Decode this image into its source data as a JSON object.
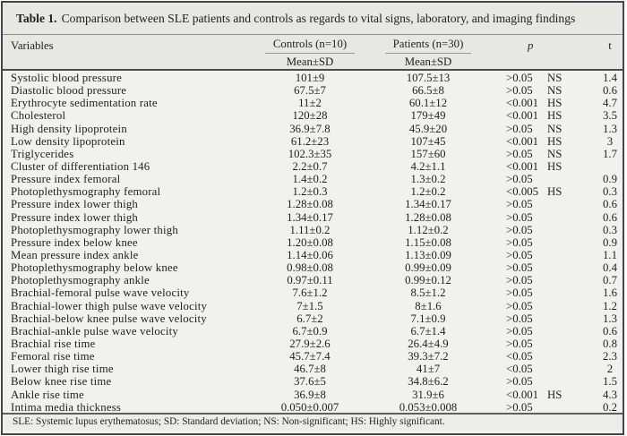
{
  "title": {
    "label": "Table 1.",
    "text": "Comparison between SLE patients and controls as regards to vital signs, laboratory, and imaging findings"
  },
  "header": {
    "variables": "Variables",
    "controls": {
      "label": "Controls (n=10)",
      "sub": "Mean±SD"
    },
    "patients": {
      "label": "Patients (n=30)",
      "sub": "Mean±SD"
    },
    "p": "p",
    "t": "t"
  },
  "rows": [
    {
      "variable": "Systolic blood pressure",
      "controls": "101±9",
      "patients": "107.5±13",
      "p": ">0.05",
      "sig": "NS",
      "t": "1.4"
    },
    {
      "variable": "Diastolic blood pressure",
      "controls": "67.5±7",
      "patients": "66.5±8",
      "p": ">0.05",
      "sig": "NS",
      "t": "0.6"
    },
    {
      "variable": "Erythrocyte sedimentation rate",
      "controls": "11±2",
      "patients": "60.1±12",
      "p": "<0.001",
      "sig": "HS",
      "t": "4.7"
    },
    {
      "variable": "Cholesterol",
      "controls": "120±28",
      "patients": "179±49",
      "p": "<0.001",
      "sig": "HS",
      "t": "3.5"
    },
    {
      "variable": "High density lipoprotein",
      "controls": "36.9±7.8",
      "patients": "45.9±20",
      "p": ">0.05",
      "sig": "NS",
      "t": "1.3"
    },
    {
      "variable": "Low density lipoprotein",
      "controls": "61.2±23",
      "patients": "107±45",
      "p": "<0.001",
      "sig": "HS",
      "t": "3"
    },
    {
      "variable": "Triglycerides",
      "controls": "102.3±35",
      "patients": "157±60",
      "p": ">0.05",
      "sig": "NS",
      "t": "1.7"
    },
    {
      "variable": "Cluster of differentiation 146",
      "controls": "2.2±0.7",
      "patients": "4.2±1.1",
      "p": "<0.001",
      "sig": "HS",
      "t": ""
    },
    {
      "variable": "Pressure index femoral",
      "controls": "1.4±0.2",
      "patients": "1.3±0.2",
      "p": ">0.05",
      "sig": "",
      "t": "0.9"
    },
    {
      "variable": "Photoplethysmography femoral",
      "controls": "1.2±0.3",
      "patients": "1.2±0.2",
      "p": "<0.005",
      "sig": "HS",
      "t": "0.3"
    },
    {
      "variable": "Pressure index lower thigh",
      "controls": "1.28±0.08",
      "patients": "1.34±0.17",
      "p": ">0.05",
      "sig": "",
      "t": "0.6"
    },
    {
      "variable": "Pressure index lower thigh",
      "controls": "1.34±0.17",
      "patients": "1.28±0.08",
      "p": ">0.05",
      "sig": "",
      "t": "0.6"
    },
    {
      "variable": "Photoplethysmography lower thigh",
      "controls": "1.11±0.2",
      "patients": "1.12±0.2",
      "p": ">0.05",
      "sig": "",
      "t": "0.3"
    },
    {
      "variable": "Pressure index below knee",
      "controls": "1.20±0.08",
      "patients": "1.15±0.08",
      "p": ">0.05",
      "sig": "",
      "t": "0.9"
    },
    {
      "variable": "Mean pressure index ankle",
      "controls": "1.14±0.06",
      "patients": "1.13±0.09",
      "p": ">0.05",
      "sig": "",
      "t": "1.1"
    },
    {
      "variable": "Photoplethysmography below knee",
      "controls": "0.98±0.08",
      "patients": "0.99±0.09",
      "p": ">0.05",
      "sig": "",
      "t": "0.4"
    },
    {
      "variable": "Photoplethysmography ankle",
      "controls": "0.97±0.11",
      "patients": "0.99±0.12",
      "p": ">0.05",
      "sig": "",
      "t": "0.7"
    },
    {
      "variable": "Brachial-femoral pulse wave velocity",
      "controls": "7.6±1.2",
      "patients": "8.5±1.2",
      "p": ">0.05",
      "sig": "",
      "t": "1.6"
    },
    {
      "variable": "Brachial-lower thigh pulse wave velocity",
      "controls": "7±1.5",
      "patients": "8±1.6",
      "p": ">0.05",
      "sig": "",
      "t": "1.2"
    },
    {
      "variable": "Brachial-below knee pulse wave velocity",
      "controls": "6.7±2",
      "patients": "7.1±0.9",
      "p": ">0.05",
      "sig": "",
      "t": "1.3"
    },
    {
      "variable": "Brachial-ankle pulse wave velocity",
      "controls": "6.7±0.9",
      "patients": "6.7±1.4",
      "p": ">0.05",
      "sig": "",
      "t": "0.6"
    },
    {
      "variable": "Brachial rise time",
      "controls": "27.9±2.6",
      "patients": "26.4±4.9",
      "p": ">0.05",
      "sig": "",
      "t": "0.8"
    },
    {
      "variable": "Femoral rise time",
      "controls": "45.7±7.4",
      "patients": "39.3±7.2",
      "p": "<0.05",
      "sig": "",
      "t": "2.3"
    },
    {
      "variable": "Lower thigh rise time",
      "controls": "46.7±8",
      "patients": "41±7",
      "p": "<0.05",
      "sig": "",
      "t": "2"
    },
    {
      "variable": "Below knee rise time",
      "controls": "37.6±5",
      "patients": "34.8±6.2",
      "p": ">0.05",
      "sig": "",
      "t": "1.5"
    },
    {
      "variable": "Ankle rise time",
      "controls": "36.9±8",
      "patients": "31.9±6",
      "p": "<0.001",
      "sig": "HS",
      "t": "4.3"
    },
    {
      "variable": "Intima media thickness",
      "controls": "0.050±0.007",
      "patients": "0.053±0.008",
      "p": ">0.05",
      "sig": "",
      "t": "0.2"
    }
  ],
  "footnote": "SLE: Systemic lupus erythematosus; SD: Standard deviation; NS: Non-significant; HS: Highly significant."
}
